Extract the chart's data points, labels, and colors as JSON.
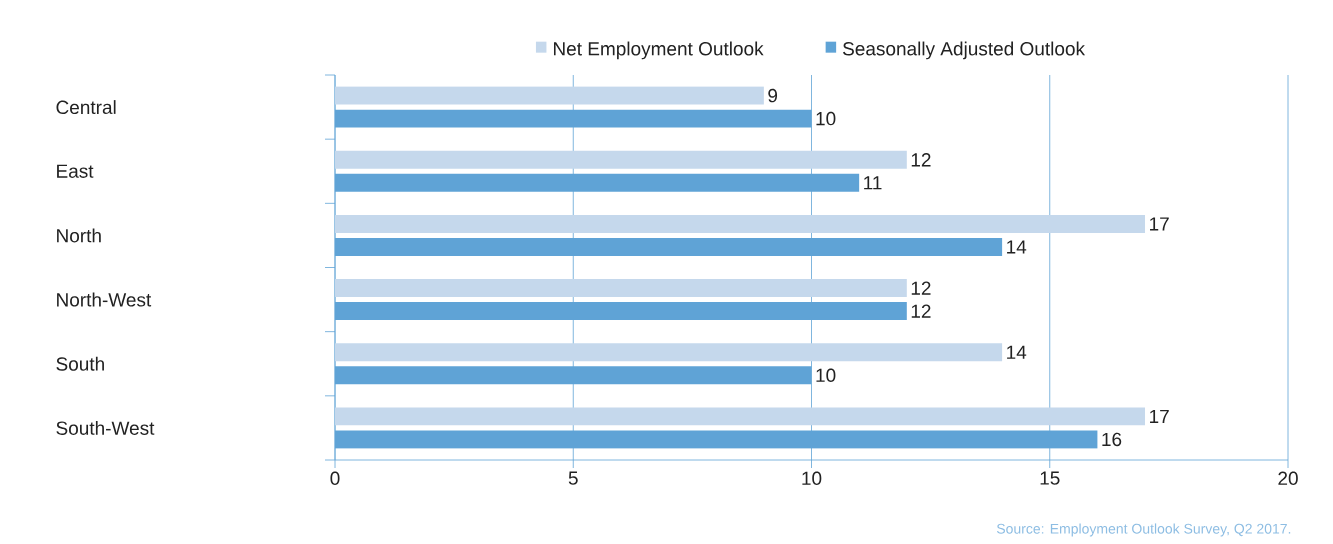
{
  "chart_data": {
    "type": "bar",
    "orientation": "horizontal",
    "categories": [
      "Central",
      "East",
      "North",
      "North-West",
      "South",
      "South-West"
    ],
    "series": [
      {
        "name": "Net Employment Outlook",
        "color": "#c5d8ec",
        "values": [
          9,
          12,
          17,
          12,
          14,
          17
        ]
      },
      {
        "name": "Seasonally Adjusted Outlook",
        "color": "#5fa3d6",
        "values": [
          10,
          11,
          14,
          12,
          10,
          16
        ]
      }
    ],
    "xlim": [
      0,
      20
    ],
    "xticks": [
      0,
      5,
      10,
      15,
      20
    ],
    "grid": "x",
    "legend": "top",
    "data_labels": true,
    "annotations": [
      "Source: Employment Outlook Survey, Q2 2017."
    ]
  }
}
